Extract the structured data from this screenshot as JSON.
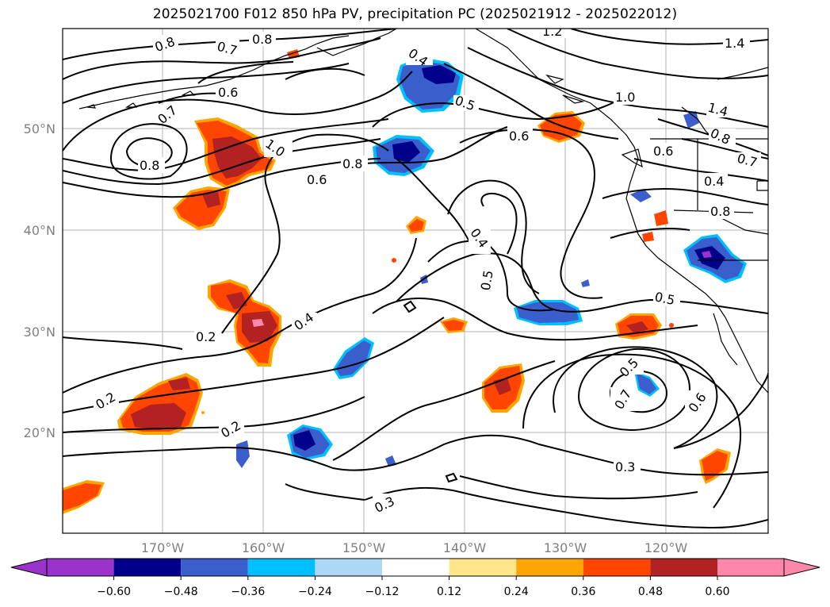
{
  "title": "2025021700 F012 850 hPa PV, precipitation PC (2025021912 - 2025022012)",
  "map": {
    "lat_labels": [
      "50°N",
      "40°N",
      "30°N",
      "20°N"
    ],
    "lon_labels": [
      "170°W",
      "160°W",
      "150°W",
      "140°W",
      "130°W",
      "120°W"
    ],
    "contour_labels": [
      "0.8",
      "0.7",
      "0.8",
      "1.2",
      "1.4",
      "0.7",
      "0.4",
      "0.6",
      "0.5",
      "0.6",
      "1.0",
      "1.4",
      "0.8",
      "0.6",
      "1.0",
      "0.8",
      "0.6",
      "0.8",
      "0.7",
      "0.4",
      "0.4",
      "0.8",
      "0.5",
      "0.5",
      "0.4",
      "0.2",
      "0.2",
      "0.2",
      "0.5",
      "0.7",
      "0.6",
      "0.3",
      "0.3"
    ],
    "grid": true,
    "coastlines": true
  },
  "colorbar": {
    "ticks": [
      "−0.60",
      "−0.48",
      "−0.36",
      "−0.24",
      "−0.12",
      "0.12",
      "0.24",
      "0.36",
      "0.48",
      "0.60"
    ],
    "colors": [
      "#9933cc",
      "#00008b",
      "#3a5fcd",
      "#00bfff",
      "#add8f5",
      "#ffffff",
      "#ffe68a",
      "#ffa500",
      "#ff4500",
      "#b22222",
      "#ff88aa"
    ]
  }
}
